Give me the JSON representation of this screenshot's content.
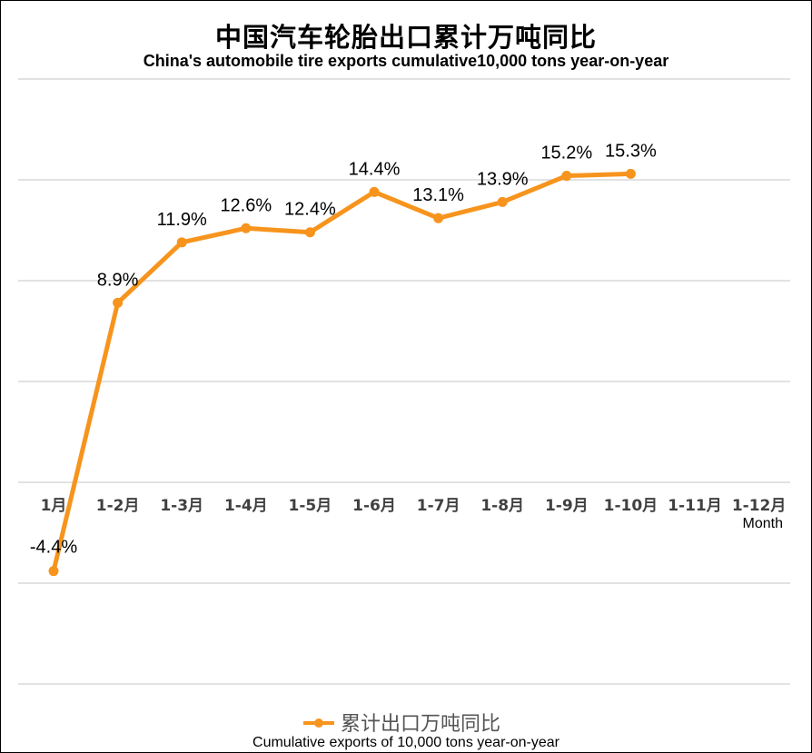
{
  "chart_data": {
    "type": "line",
    "title": "中国汽车轮胎出口累计万吨同比",
    "subtitle": "China's automobile tire exports cumulative10,000 tons year-on-year",
    "categories": [
      "1月",
      "1-2月",
      "1-3月",
      "1-4月",
      "1-5月",
      "1-6月",
      "1-7月",
      "1-8月",
      "1-9月",
      "1-10月",
      "1-11月",
      "1-12月"
    ],
    "x_unit_label": "Month",
    "series": [
      {
        "name": "累计出口万吨同比",
        "name_en": "Cumulative exports of 10,000 tons year-on-year",
        "values": [
          -4.4,
          8.9,
          11.9,
          12.6,
          12.4,
          14.4,
          13.1,
          13.9,
          15.2,
          15.3,
          null,
          null
        ],
        "labels": [
          "-4.4%",
          "8.9%",
          "11.9%",
          "12.6%",
          "12.4%",
          "14.4%",
          "13.1%",
          "13.9%",
          "15.2%",
          "15.3%",
          "",
          ""
        ],
        "color": "#F7941D"
      }
    ],
    "ylim": [
      -10,
      20
    ],
    "y_gridline_step": 5,
    "y_tick_labels_shown": false,
    "grid": true,
    "legend_position": "bottom"
  }
}
